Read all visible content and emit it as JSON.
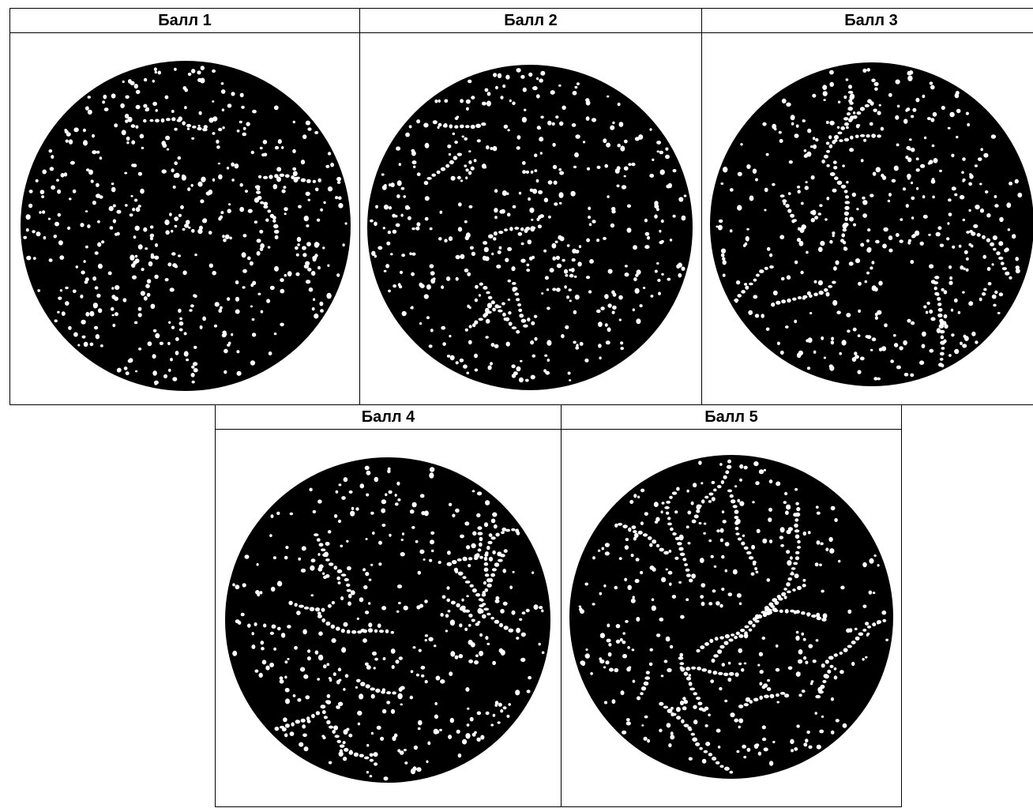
{
  "panels": [
    {
      "label": "Балл 1",
      "score": 1
    },
    {
      "label": "Балл 2",
      "score": 2
    },
    {
      "label": "Балл 3",
      "score": 3
    },
    {
      "label": "Балл 4",
      "score": 4
    },
    {
      "label": "Балл 5",
      "score": 5
    }
  ],
  "colors": {
    "background": "#000000",
    "particles": "#ffffff",
    "border": "#000000"
  }
}
